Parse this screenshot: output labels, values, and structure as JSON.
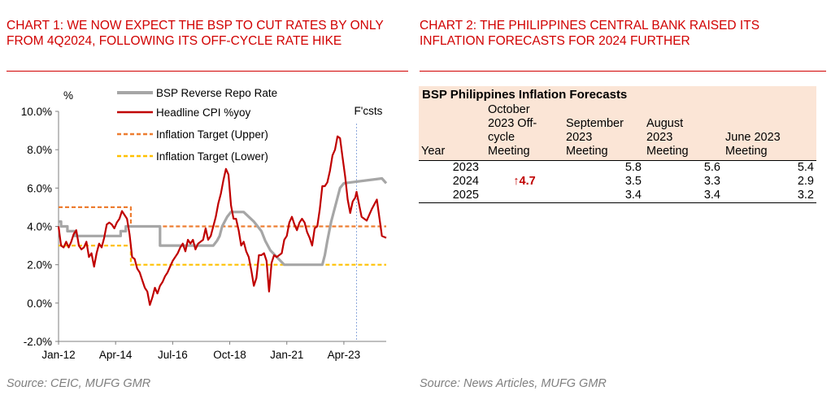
{
  "panel1": {
    "title": "CHART 1: WE NOW EXPECT THE BSP TO CUT RATES BY ONLY FROM 4Q2024, FOLLOWING ITS OFF-CYCLE RATE HIKE",
    "source": "Source: CEIC, MUFG GMR"
  },
  "panel2": {
    "title": "CHART 2: THE PHILIPPINES CENTRAL BANK RAISED ITS INFLATION FORECASTS FOR 2024 FURTHER",
    "source": "Source: News Articles, MUFG GMR"
  },
  "colors": {
    "title_red": "#d10000",
    "repo": "#a6a6a6",
    "cpi": "#c00000",
    "upper": "#ed7d31",
    "lower": "#ffc000",
    "forecast_line": "#8faadc",
    "table_fill": "#fbe5d6"
  },
  "chart_data": [
    {
      "type": "line",
      "ylabel": "%",
      "annotation": "F'csts",
      "forecast_start": 2023.75,
      "xlim": [
        2012.0,
        2024.92
      ],
      "ylim": [
        -2,
        10
      ],
      "y_ticks": [
        -2,
        0,
        2,
        4,
        6,
        8,
        10
      ],
      "y_tick_labels": [
        "-2.0%",
        "0.0%",
        "2.0%",
        "4.0%",
        "6.0%",
        "8.0%",
        "10.0%"
      ],
      "x_ticks": [
        2012.0,
        2014.25,
        2016.5,
        2018.75,
        2021.0,
        2023.25
      ],
      "x_tick_labels": [
        "Jan-12",
        "Apr-14",
        "Jul-16",
        "Oct-18",
        "Jan-21",
        "Apr-23"
      ],
      "legend_position": "top",
      "series": [
        {
          "name": "BSP Reverse Repo Rate",
          "style": "solid-thick",
          "x": [
            2012.0,
            2012.1,
            2012.1,
            2012.35,
            2012.35,
            2012.65,
            2012.65,
            2012.85,
            2012.85,
            2014.45,
            2014.45,
            2014.65,
            2014.65,
            2016.0,
            2016.0,
            2017.1,
            2017.1,
            2017.2,
            2018.1,
            2018.25,
            2018.35,
            2018.45,
            2018.65,
            2018.8,
            2019.0,
            2019.3,
            2019.5,
            2019.7,
            2019.85,
            2020.0,
            2020.15,
            2020.35,
            2020.9,
            2022.4,
            2022.5,
            2022.6,
            2022.75,
            2022.9,
            2023.0,
            2023.1,
            2023.25,
            2024.75,
            2024.92
          ],
          "values": [
            4.25,
            4.25,
            4.0,
            4.0,
            3.75,
            3.75,
            3.5,
            3.5,
            3.5,
            3.5,
            3.75,
            3.75,
            4.0,
            4.0,
            3.0,
            3.0,
            3.0,
            3.0,
            3.0,
            3.25,
            3.5,
            4.0,
            4.5,
            4.75,
            4.75,
            4.75,
            4.5,
            4.25,
            4.0,
            3.75,
            3.25,
            2.75,
            2.0,
            2.0,
            2.5,
            3.25,
            4.25,
            5.0,
            5.5,
            6.0,
            6.25,
            6.5,
            6.25
          ]
        },
        {
          "name": "Headline CPI %yoy",
          "style": "solid",
          "x": [
            2012.0,
            2012.1,
            2012.2,
            2012.3,
            2012.4,
            2012.5,
            2012.6,
            2012.7,
            2012.8,
            2012.9,
            2013.0,
            2013.1,
            2013.2,
            2013.3,
            2013.4,
            2013.5,
            2013.6,
            2013.7,
            2013.8,
            2013.9,
            2014.0,
            2014.1,
            2014.2,
            2014.3,
            2014.4,
            2014.5,
            2014.6,
            2014.7,
            2014.8,
            2014.9,
            2015.0,
            2015.1,
            2015.2,
            2015.3,
            2015.4,
            2015.5,
            2015.6,
            2015.7,
            2015.8,
            2015.9,
            2016.0,
            2016.1,
            2016.2,
            2016.3,
            2016.4,
            2016.5,
            2016.6,
            2016.7,
            2016.8,
            2016.9,
            2017.0,
            2017.1,
            2017.2,
            2017.3,
            2017.4,
            2017.5,
            2017.6,
            2017.7,
            2017.8,
            2017.9,
            2018.0,
            2018.1,
            2018.2,
            2018.3,
            2018.4,
            2018.5,
            2018.6,
            2018.7,
            2018.8,
            2018.9,
            2019.0,
            2019.1,
            2019.2,
            2019.3,
            2019.4,
            2019.5,
            2019.6,
            2019.7,
            2019.8,
            2019.9,
            2020.0,
            2020.1,
            2020.2,
            2020.3,
            2020.4,
            2020.5,
            2020.6,
            2020.7,
            2020.8,
            2020.9,
            2021.0,
            2021.1,
            2021.2,
            2021.3,
            2021.4,
            2021.5,
            2021.6,
            2021.7,
            2021.8,
            2021.9,
            2022.0,
            2022.1,
            2022.2,
            2022.3,
            2022.4,
            2022.5,
            2022.6,
            2022.7,
            2022.8,
            2022.9,
            2023.0,
            2023.1,
            2023.2,
            2023.3,
            2023.4,
            2023.5,
            2023.6,
            2023.7,
            2023.75,
            2023.95,
            2024.15,
            2024.35,
            2024.55,
            2024.75,
            2024.92
          ],
          "values": [
            4.0,
            3.0,
            2.9,
            3.2,
            2.9,
            3.2,
            3.6,
            3.8,
            3.0,
            2.8,
            2.9,
            3.2,
            2.4,
            2.6,
            1.9,
            2.6,
            3.1,
            2.9,
            3.4,
            4.1,
            4.2,
            4.1,
            3.9,
            4.2,
            4.4,
            4.8,
            4.6,
            4.4,
            3.6,
            2.4,
            2.3,
            1.8,
            1.6,
            1.2,
            0.8,
            0.6,
            -0.1,
            0.3,
            0.8,
            0.5,
            0.9,
            1.1,
            1.4,
            1.6,
            1.9,
            2.2,
            2.4,
            2.6,
            2.9,
            3.1,
            2.7,
            3.3,
            3.1,
            3.3,
            2.8,
            3.1,
            3.2,
            3.3,
            3.9,
            3.3,
            3.5,
            4.0,
            4.5,
            5.2,
            5.7,
            6.4,
            7.0,
            6.7,
            5.1,
            4.4,
            4.4,
            3.8,
            3.0,
            3.2,
            2.7,
            2.4,
            1.7,
            0.9,
            1.3,
            2.5,
            2.5,
            2.6,
            2.2,
            0.6,
            2.1,
            2.5,
            2.4,
            2.5,
            2.6,
            3.3,
            3.5,
            4.2,
            4.5,
            4.1,
            3.8,
            4.2,
            4.4,
            4.2,
            3.7,
            3.4,
            3.0,
            3.9,
            4.0,
            4.9,
            6.1,
            6.1,
            6.3,
            6.9,
            7.7,
            8.0,
            8.7,
            8.6,
            7.6,
            6.6,
            5.4,
            4.7,
            5.3,
            5.5,
            5.8,
            4.5,
            4.3,
            4.9,
            5.4,
            3.5,
            3.4
          ]
        },
        {
          "name": "Inflation Target (Upper)",
          "style": "dashed",
          "x": [
            2012.0,
            2014.85,
            2014.85,
            2024.92
          ],
          "values": [
            5.0,
            5.0,
            4.0,
            4.0
          ]
        },
        {
          "name": "Inflation Target (Lower)",
          "style": "dashed",
          "x": [
            2012.0,
            2014.85,
            2014.85,
            2024.92
          ],
          "values": [
            3.0,
            3.0,
            2.0,
            2.0
          ]
        }
      ]
    },
    {
      "type": "table",
      "title": "BSP Philippines Inflation Forecasts",
      "columns": [
        "Year",
        "October 2023 Off-cycle Meeting",
        "September 2023 Meeting",
        "August 2023 Meeting",
        "June 2023 Meeting"
      ],
      "rows": [
        {
          "year": "2023",
          "oct": "",
          "sep": "5.8",
          "aug": "5.6",
          "jun": "5.4"
        },
        {
          "year": "2024",
          "oct": "↑4.7",
          "sep": "3.5",
          "aug": "3.3",
          "jun": "2.9"
        },
        {
          "year": "2025",
          "oct": "",
          "sep": "3.4",
          "aug": "3.4",
          "jun": "3.2"
        }
      ]
    }
  ],
  "table_header": {
    "year": "Year",
    "oct_lines": [
      "October",
      "2023 Off-",
      "cycle",
      "Meeting"
    ],
    "sep_lines": [
      "September",
      "2023",
      "Meeting"
    ],
    "aug_lines": [
      "August",
      "2023",
      "Meeting"
    ],
    "jun_lines": [
      "June 2023",
      "Meeting"
    ]
  }
}
